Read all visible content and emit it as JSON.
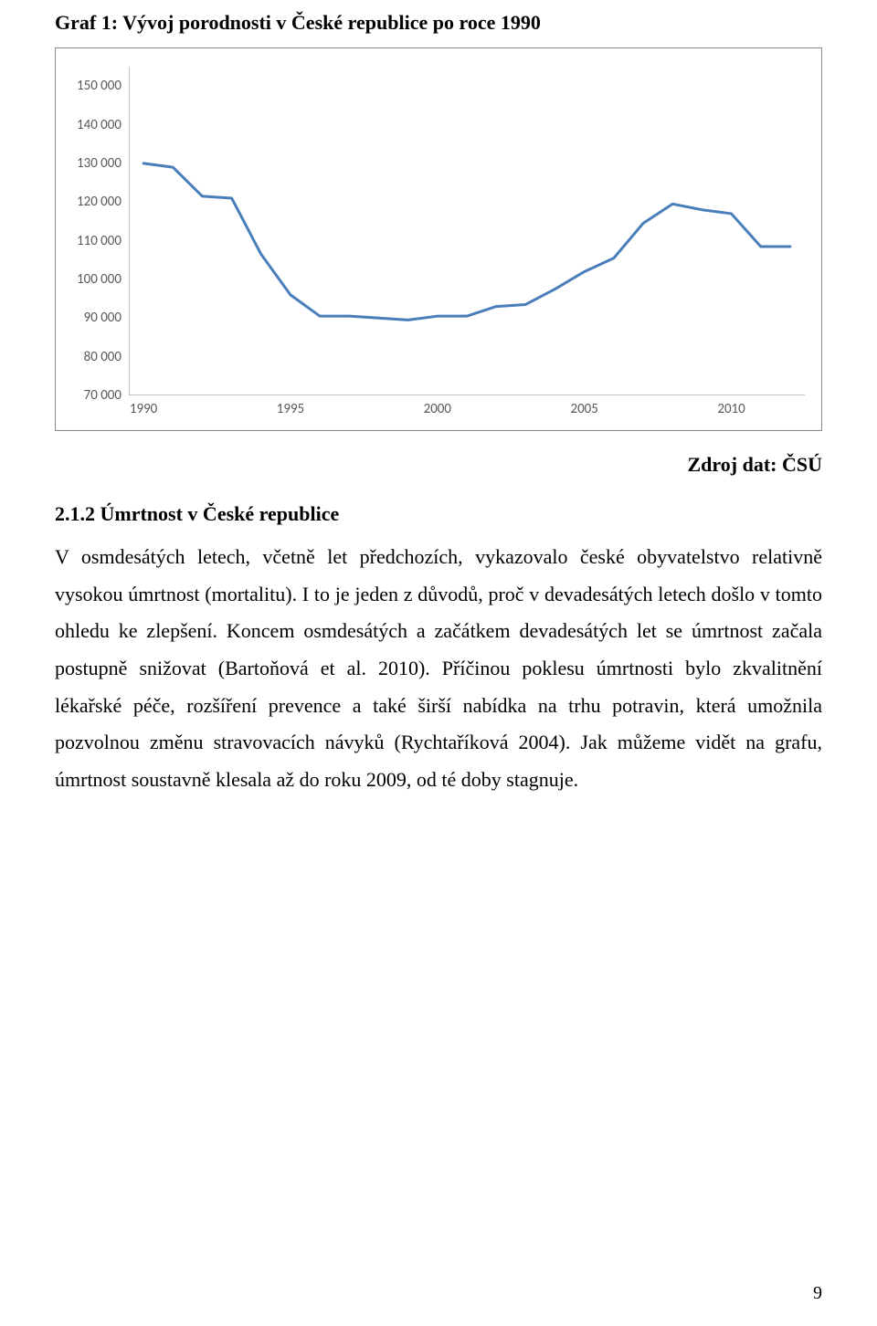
{
  "title": "Graf 1: Vývoj porodnosti v České republice po roce 1990",
  "source": "Zdroj dat: ČSÚ",
  "section": {
    "heading": "2.1.2 Úmrtnost v České republice",
    "paragraph": "V osmdesátých letech, včetně let předchozích, vykazovalo české obyvatelstvo relativně vysokou úmrtnost (mortalitu). I to je jeden z důvodů, proč v devadesátých letech došlo v tomto ohledu ke zlepšení. Koncem osmdesátých a začátkem devadesátých let se úmrtnost začala postupně snižovat (Bartoňová et al. 2010). Příčinou poklesu úmrtnosti bylo zkvalitnění lékařské péče, rozšíření prevence a také širší nabídka na trhu potravin, která umožnila pozvolnou změnu stravovacích návyků (Rychtaříková 2004). Jak můžeme vidět na grafu, úmrtnost soustavně klesala až do roku 2009, od té doby stagnuje."
  },
  "page_number": "9",
  "chart": {
    "type": "line",
    "title_fontsize": 22,
    "label_fontsize": 15,
    "label_color": "#595959",
    "line_color": "#4a7ebb",
    "line_width": 3,
    "axis_color": "#898989",
    "tick_color": "#898989",
    "background_color": "#ffffff",
    "border_color": "#888888",
    "ylim": [
      70000,
      155000
    ],
    "ytick_step": 10000,
    "yticks": [
      70000,
      80000,
      90000,
      100000,
      110000,
      120000,
      130000,
      140000,
      150000
    ],
    "ytick_labels": [
      "70 000",
      "80 000",
      "90 000",
      "100 000",
      "110 000",
      "120 000",
      "130 000",
      "140 000",
      "150 000"
    ],
    "x_years": [
      1990,
      1991,
      1992,
      1993,
      1994,
      1995,
      1996,
      1997,
      1998,
      1999,
      2000,
      2001,
      2002,
      2003,
      2004,
      2005,
      2006,
      2007,
      2008,
      2009,
      2010,
      2011,
      2012
    ],
    "x_major_ticks": [
      1990,
      1995,
      2000,
      2005,
      2010
    ],
    "x_major_labels": [
      "1990",
      "1995",
      "2000",
      "2005",
      "2010"
    ],
    "values": [
      130000,
      129000,
      121500,
      121000,
      106500,
      96000,
      90500,
      90500,
      90000,
      89500,
      90500,
      90500,
      93000,
      93500,
      97500,
      102000,
      105500,
      114500,
      119500,
      118000,
      117000,
      108500,
      108500
    ]
  }
}
